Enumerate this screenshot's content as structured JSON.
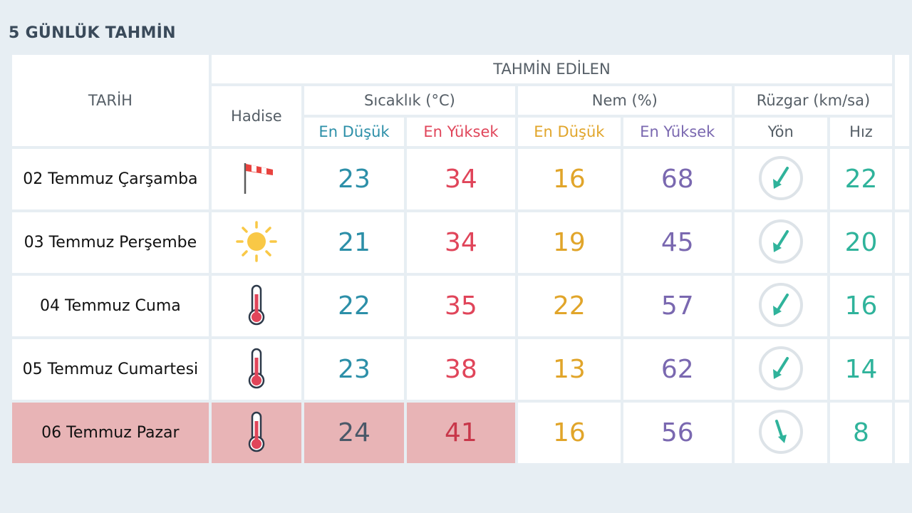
{
  "title": "5 GÜNLÜK TAHMİN",
  "headers": {
    "date": "TARİH",
    "forecast_group": "TAHMİN EDİLEN",
    "event": "Hadise",
    "temperature": "Sıcaklık (°C)",
    "humidity": "Nem (%)",
    "wind": "Rüzgar (km/sa)",
    "temp_low": "En Düşük",
    "temp_high": "En Yüksek",
    "hum_low": "En Düşük",
    "hum_high": "En Yüksek",
    "wind_dir": "Yön",
    "wind_speed": "Hız"
  },
  "rows": [
    {
      "date": "02 Temmuz Çarşamba",
      "event_icon": "windsock-icon",
      "temp_low": "23",
      "temp_high": "34",
      "hum_low": "16",
      "hum_high": "68",
      "wind_dir_icon": "wind-direction-southwest-icon",
      "wind_speed": "22"
    },
    {
      "date": "03 Temmuz Perşembe",
      "event_icon": "sun-icon",
      "temp_low": "21",
      "temp_high": "34",
      "hum_low": "19",
      "hum_high": "45",
      "wind_dir_icon": "wind-direction-southwest-icon",
      "wind_speed": "20"
    },
    {
      "date": "04 Temmuz Cuma",
      "event_icon": "thermometer-icon",
      "temp_low": "22",
      "temp_high": "35",
      "hum_low": "22",
      "hum_high": "57",
      "wind_dir_icon": "wind-direction-southwest-icon",
      "wind_speed": "16"
    },
    {
      "date": "05 Temmuz Cumartesi",
      "event_icon": "thermometer-icon",
      "temp_low": "23",
      "temp_high": "38",
      "hum_low": "13",
      "hum_high": "62",
      "wind_dir_icon": "wind-direction-southwest-icon",
      "wind_speed": "14"
    },
    {
      "date": "06 Temmuz Pazar",
      "event_icon": "thermometer-icon",
      "temp_low": "24",
      "temp_high": "41",
      "hum_low": "16",
      "hum_high": "56",
      "wind_dir_icon": "wind-direction-south-southeast-icon",
      "wind_speed": "8"
    }
  ],
  "colors": {
    "temp_low": "#2c8fa8",
    "temp_high": "#e0455a",
    "hum_low": "#e1a52a",
    "hum_high": "#7a68b0",
    "wind_speed": "#2fb39b",
    "highlight_row": "#e8b4b6"
  }
}
